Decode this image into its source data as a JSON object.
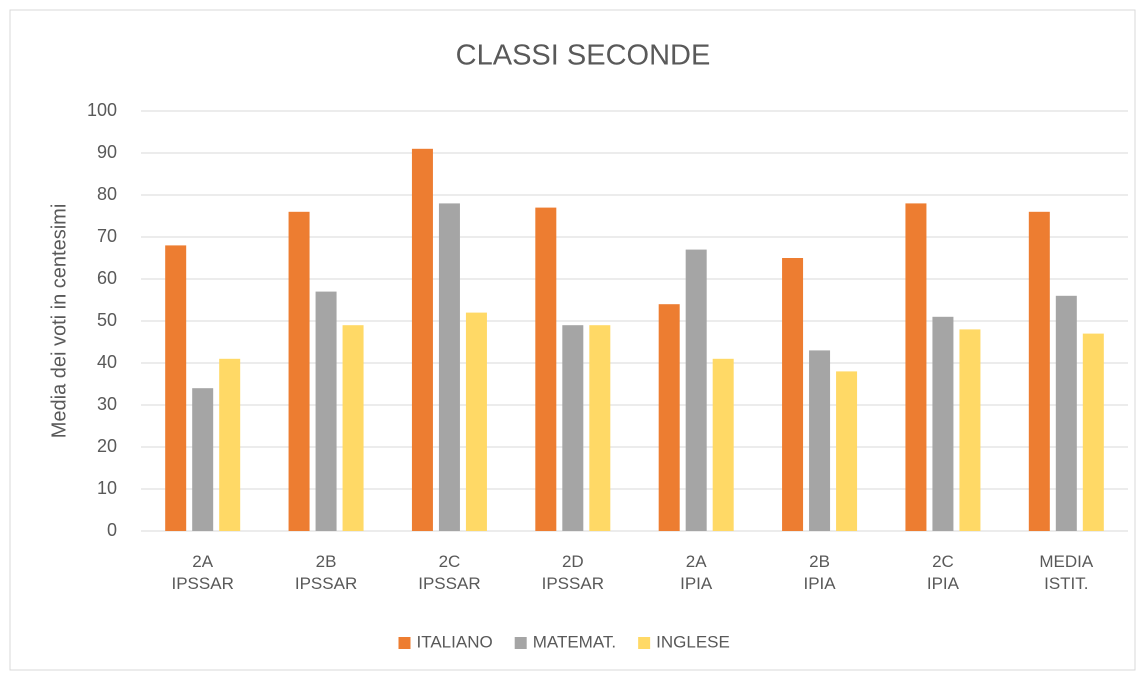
{
  "chart_data": {
    "type": "bar",
    "title": "CLASSI SECONDE",
    "ylabel": "Media dei voti in centesimi",
    "categories": [
      "2A IPSSAR",
      "2B IPSSAR",
      "2C IPSSAR",
      "2D IPSSAR",
      "2A IPIA",
      "2B IPIA",
      "2C IPIA",
      "MEDIA ISTIT."
    ],
    "series": [
      {
        "name": "ITALIANO",
        "color": "#ed7d31",
        "values": [
          68,
          76,
          91,
          77,
          54,
          65,
          78,
          76
        ]
      },
      {
        "name": "MATEMAT.",
        "color": "#a5a5a5",
        "values": [
          34,
          57,
          78,
          49,
          67,
          43,
          51,
          56
        ]
      },
      {
        "name": "INGLESE",
        "color": "#ffd966",
        "values": [
          41,
          49,
          52,
          49,
          41,
          38,
          48,
          47
        ]
      }
    ],
    "ylim": [
      0,
      100
    ],
    "yticks": [
      0,
      10,
      20,
      30,
      40,
      50,
      60,
      70,
      80,
      90,
      100
    ],
    "grid": true,
    "legend": "bottom"
  }
}
